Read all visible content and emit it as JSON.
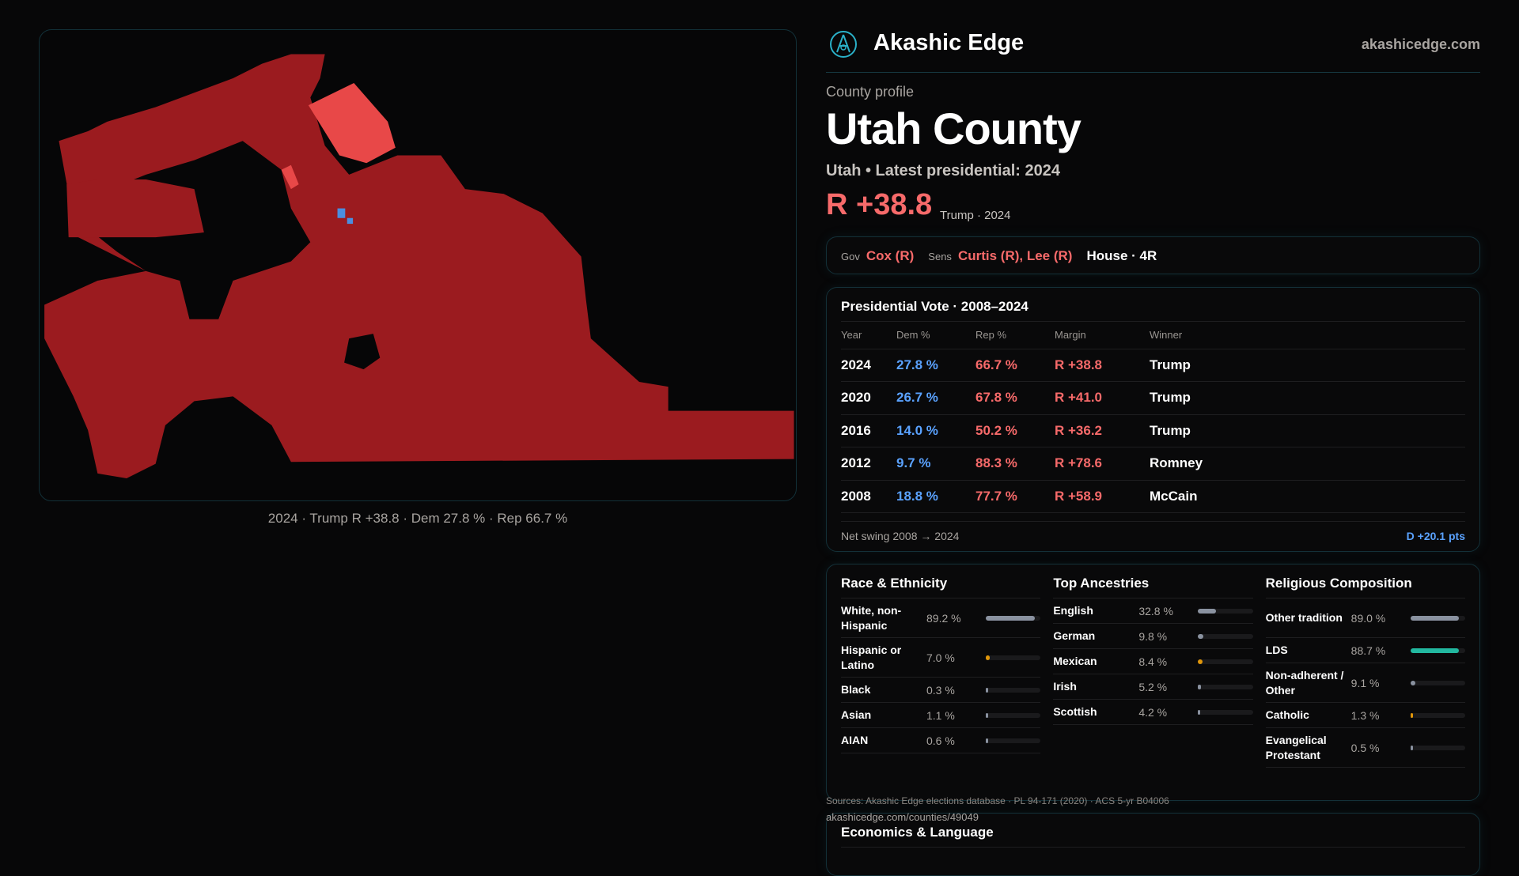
{
  "map": {
    "caption": "2024 · Trump R +38.8 · Dem 27.8 % · Rep 66.7 %",
    "colors": {
      "rep_strong": "#9b1b1f",
      "rep_light": "#e84848",
      "dem": "#4a8ee0"
    }
  },
  "header": {
    "brand": "Akashic Edge",
    "site": "akashicedge.com",
    "logo_icon": "compass-emblem-icon"
  },
  "profile": {
    "kicker": "County profile",
    "title": "Utah County",
    "subtitle": "Utah • Latest presidential: 2024",
    "margin": "R +38.8",
    "margin_note": "Trump · 2024"
  },
  "officials": {
    "gov_label": "Gov",
    "gov": "Cox (R)",
    "sens_label": "Sens",
    "sens": "Curtis (R), Lee (R)",
    "house": "House · 4R"
  },
  "presidential": {
    "title": "Presidential Vote · 2008–2024",
    "columns": [
      "Year",
      "Dem %",
      "Rep %",
      "Margin",
      "Winner"
    ],
    "rows": [
      {
        "year": "2024",
        "dem": "27.8 %",
        "rep": "66.7 %",
        "margin": "R +38.8",
        "winner": "Trump"
      },
      {
        "year": "2020",
        "dem": "26.7 %",
        "rep": "67.8 %",
        "margin": "R +41.0",
        "winner": "Trump"
      },
      {
        "year": "2016",
        "dem": "14.0 %",
        "rep": "50.2 %",
        "margin": "R +36.2",
        "winner": "Trump"
      },
      {
        "year": "2012",
        "dem": "9.7 %",
        "rep": "88.3 %",
        "margin": "R +78.6",
        "winner": "Romney"
      },
      {
        "year": "2008",
        "dem": "18.8 %",
        "rep": "77.7 %",
        "margin": "R +58.9",
        "winner": "McCain"
      }
    ],
    "swing_label": "Net swing 2008 → 2024",
    "swing_value": "D +20.1 pts"
  },
  "race": {
    "title": "Race & Ethnicity",
    "items": [
      {
        "name": "White, non-Hispanic",
        "value": "89.2 %",
        "pct": 89.2,
        "color": "#8a92a0"
      },
      {
        "name": "Hispanic or Latino",
        "value": "7.0 %",
        "pct": 7.0,
        "color": "#e0960a"
      },
      {
        "name": "Black",
        "value": "0.3 %",
        "pct": 0.3,
        "color": "#8a92a0"
      },
      {
        "name": "Asian",
        "value": "1.1 %",
        "pct": 1.1,
        "color": "#8a92a0"
      },
      {
        "name": "AIAN",
        "value": "0.6 %",
        "pct": 0.6,
        "color": "#8a92a0"
      }
    ]
  },
  "ancestry": {
    "title": "Top Ancestries",
    "items": [
      {
        "name": "English",
        "value": "32.8 %",
        "pct": 32.8,
        "color": "#8a92a0"
      },
      {
        "name": "German",
        "value": "9.8 %",
        "pct": 9.8,
        "color": "#8a92a0"
      },
      {
        "name": "Mexican",
        "value": "8.4 %",
        "pct": 8.4,
        "color": "#e0960a"
      },
      {
        "name": "Irish",
        "value": "5.2 %",
        "pct": 5.2,
        "color": "#8a92a0"
      },
      {
        "name": "Scottish",
        "value": "4.2 %",
        "pct": 4.2,
        "color": "#8a92a0"
      }
    ]
  },
  "religion": {
    "title": "Religious Composition",
    "items": [
      {
        "name": "Other tradition",
        "value": "89.0 %",
        "pct": 89.0,
        "color": "#8a92a0"
      },
      {
        "name": "LDS",
        "value": "88.7 %",
        "pct": 88.7,
        "color": "#22b8a0"
      },
      {
        "name": "Non-adherent / Other",
        "value": "9.1 %",
        "pct": 9.1,
        "color": "#8a92a0"
      },
      {
        "name": "Catholic",
        "value": "1.3 %",
        "pct": 1.3,
        "color": "#e0960a"
      },
      {
        "name": "Evangelical Protestant",
        "value": "0.5 %",
        "pct": 0.5,
        "color": "#8a92a0"
      }
    ]
  },
  "footer": {
    "sources": "Sources: Akashic Edge elections database · PL 94-171 (2020) · ACS 5-yr B04006",
    "url": "akashicedge.com/counties/49049"
  },
  "economics": {
    "title": "Economics & Language"
  }
}
